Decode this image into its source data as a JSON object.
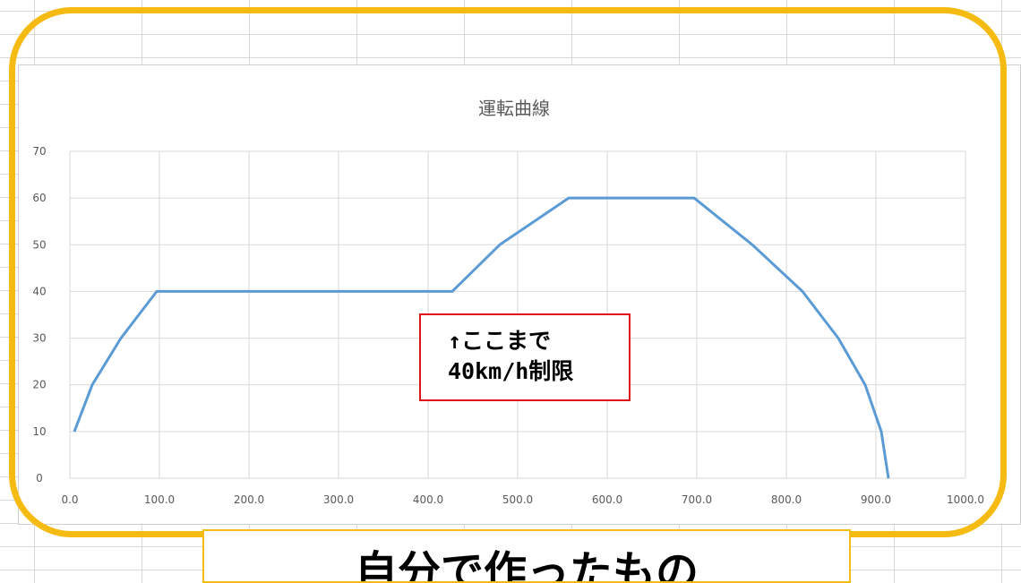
{
  "chart_data": {
    "type": "line",
    "title": "運転曲線",
    "xlabel": "",
    "ylabel": "",
    "xlim": [
      0,
      1000
    ],
    "ylim": [
      0,
      70
    ],
    "x_ticks": [
      "0.0",
      "100.0",
      "200.0",
      "300.0",
      "400.0",
      "500.0",
      "600.0",
      "700.0",
      "800.0",
      "900.0",
      "1000.0"
    ],
    "y_ticks": [
      "0",
      "10",
      "20",
      "30",
      "40",
      "50",
      "60",
      "70"
    ],
    "grid": true,
    "legend": "none",
    "series": [
      {
        "color": "#5b9bd5",
        "points": [
          [
            5,
            10
          ],
          [
            25,
            20
          ],
          [
            57,
            30
          ],
          [
            97,
            40
          ],
          [
            427,
            40
          ],
          [
            480,
            50
          ],
          [
            557,
            60
          ],
          [
            697,
            60
          ],
          [
            762,
            50
          ],
          [
            818,
            40
          ],
          [
            858,
            30
          ],
          [
            888,
            20
          ],
          [
            906,
            10
          ],
          [
            914,
            0
          ]
        ]
      }
    ]
  },
  "annotation": {
    "text": "↑ここまで\n40km/h制限",
    "border_color": "#e0151b"
  },
  "bottom_label": {
    "text": "自分で作ったもの"
  },
  "colors": {
    "frame": "#f5bb12",
    "line": "#5b9bd5",
    "gridline": "#d9d9d9",
    "text": "#595959"
  }
}
